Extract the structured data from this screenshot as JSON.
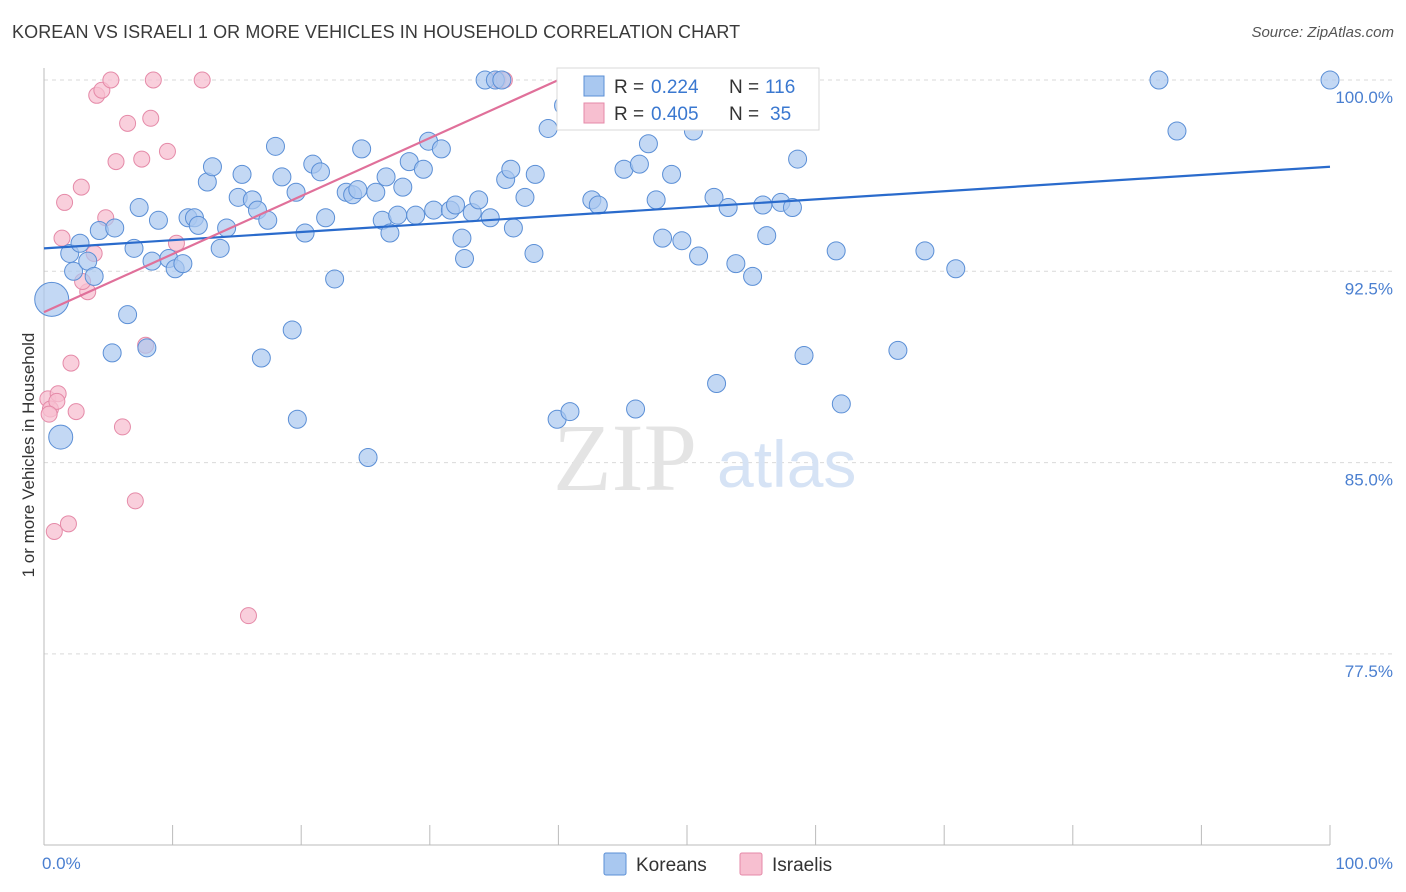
{
  "header": {
    "title": "KOREAN VS ISRAELI 1 OR MORE VEHICLES IN HOUSEHOLD CORRELATION CHART",
    "source": "Source: ZipAtlas.com"
  },
  "watermark": {
    "zip": "ZIP",
    "atlas": "atlas"
  },
  "colors": {
    "korean_fill": "#a9c8f0",
    "korean_stroke": "#5b8fd6",
    "korean_line": "#2a6bcc",
    "israeli_fill": "#f7bfd0",
    "israeli_stroke": "#e58aa8",
    "israeli_line": "#e0709a",
    "tick_text": "#4a7fd0",
    "grid": "#d9d9d9"
  },
  "chart_data": {
    "type": "scatter",
    "ylabel": "1 or more Vehicles in Household",
    "xlabel": "",
    "xlim": [
      0,
      100
    ],
    "ylim": [
      70,
      101
    ],
    "x_tick_labels": [
      "0.0%",
      "100.0%"
    ],
    "y_ticks": [
      {
        "value": 100.0,
        "label": "100.0%"
      },
      {
        "value": 92.5,
        "label": "92.5%"
      },
      {
        "value": 85.0,
        "label": "85.0%"
      },
      {
        "value": 77.5,
        "label": "77.5%"
      }
    ],
    "legend": {
      "placement": "top-center",
      "rows": [
        {
          "r_label": "R =",
          "r_value": "0.224",
          "n_label": "N =",
          "n_value": "116"
        },
        {
          "r_label": "R =",
          "r_value": "0.405",
          "n_label": "N =",
          "n_value": "35"
        }
      ]
    },
    "series": [
      {
        "name": "Koreans",
        "trend": {
          "x": [
            0,
            100
          ],
          "y": [
            93.4,
            96.6
          ]
        },
        "points": [
          [
            0.6,
            91.4
          ],
          [
            1.3,
            86.0
          ],
          [
            2.0,
            93.2
          ],
          [
            2.3,
            92.5
          ],
          [
            2.8,
            93.6
          ],
          [
            3.4,
            92.9
          ],
          [
            3.9,
            92.3
          ],
          [
            4.3,
            94.1
          ],
          [
            5.5,
            94.2
          ],
          [
            5.3,
            89.3
          ],
          [
            6.5,
            90.8
          ],
          [
            7.0,
            93.4
          ],
          [
            7.4,
            95.0
          ],
          [
            8.0,
            89.5
          ],
          [
            8.4,
            92.9
          ],
          [
            8.9,
            94.5
          ],
          [
            9.7,
            93.0
          ],
          [
            10.2,
            92.6
          ],
          [
            10.8,
            92.8
          ],
          [
            11.2,
            94.6
          ],
          [
            11.7,
            94.6
          ],
          [
            12.0,
            94.3
          ],
          [
            12.7,
            96.0
          ],
          [
            13.1,
            96.6
          ],
          [
            13.7,
            93.4
          ],
          [
            14.2,
            94.2
          ],
          [
            15.1,
            95.4
          ],
          [
            15.4,
            96.3
          ],
          [
            16.2,
            95.3
          ],
          [
            16.6,
            94.9
          ],
          [
            16.9,
            89.1
          ],
          [
            17.4,
            94.5
          ],
          [
            18.0,
            97.4
          ],
          [
            18.5,
            96.2
          ],
          [
            19.3,
            90.2
          ],
          [
            19.6,
            95.6
          ],
          [
            19.7,
            86.7
          ],
          [
            20.3,
            94.0
          ],
          [
            20.9,
            96.7
          ],
          [
            21.5,
            96.4
          ],
          [
            21.9,
            94.6
          ],
          [
            22.6,
            92.2
          ],
          [
            23.5,
            95.6
          ],
          [
            24.0,
            95.5
          ],
          [
            24.4,
            95.7
          ],
          [
            24.7,
            97.3
          ],
          [
            25.2,
            85.2
          ],
          [
            25.8,
            95.6
          ],
          [
            26.3,
            94.5
          ],
          [
            26.6,
            96.2
          ],
          [
            26.9,
            94.0
          ],
          [
            27.5,
            94.7
          ],
          [
            27.9,
            95.8
          ],
          [
            28.4,
            96.8
          ],
          [
            28.9,
            94.7
          ],
          [
            29.5,
            96.5
          ],
          [
            29.9,
            97.6
          ],
          [
            30.3,
            94.9
          ],
          [
            30.9,
            97.3
          ],
          [
            31.6,
            94.9
          ],
          [
            32.0,
            95.1
          ],
          [
            32.5,
            93.8
          ],
          [
            32.7,
            93.0
          ],
          [
            33.3,
            94.8
          ],
          [
            33.8,
            95.3
          ],
          [
            34.3,
            100.0
          ],
          [
            34.7,
            94.6
          ],
          [
            35.1,
            100.0
          ],
          [
            35.6,
            100.0
          ],
          [
            35.9,
            96.1
          ],
          [
            36.3,
            96.5
          ],
          [
            36.5,
            94.2
          ],
          [
            37.4,
            95.4
          ],
          [
            38.1,
            93.2
          ],
          [
            38.2,
            96.3
          ],
          [
            39.2,
            98.1
          ],
          [
            39.9,
            86.7
          ],
          [
            40.4,
            99.0
          ],
          [
            40.9,
            87.0
          ],
          [
            42.3,
            98.6
          ],
          [
            42.6,
            95.3
          ],
          [
            43.1,
            95.1
          ],
          [
            45.1,
            96.5
          ],
          [
            46.0,
            87.1
          ],
          [
            46.3,
            96.7
          ],
          [
            47.0,
            97.5
          ],
          [
            47.6,
            95.3
          ],
          [
            48.1,
            93.8
          ],
          [
            48.8,
            96.3
          ],
          [
            49.6,
            93.7
          ],
          [
            50.5,
            98.0
          ],
          [
            50.9,
            93.1
          ],
          [
            52.1,
            95.4
          ],
          [
            52.3,
            88.1
          ],
          [
            52.5,
            98.8
          ],
          [
            53.2,
            95.0
          ],
          [
            53.8,
            92.8
          ],
          [
            55.1,
            92.3
          ],
          [
            55.9,
            95.1
          ],
          [
            56.2,
            93.9
          ],
          [
            57.3,
            95.2
          ],
          [
            58.2,
            95.0
          ],
          [
            58.6,
            96.9
          ],
          [
            59.1,
            89.2
          ],
          [
            61.6,
            93.3
          ],
          [
            62.0,
            87.3
          ],
          [
            66.4,
            89.4
          ],
          [
            68.5,
            93.3
          ],
          [
            70.9,
            92.6
          ],
          [
            86.7,
            100.0
          ],
          [
            88.1,
            98.0
          ],
          [
            100.0,
            100.0
          ]
        ]
      },
      {
        "name": "Israelis",
        "trend": {
          "x": [
            0,
            40
          ],
          "y": [
            90.9,
            100.0
          ]
        },
        "points": [
          [
            0.3,
            87.5
          ],
          [
            0.5,
            87.1
          ],
          [
            0.8,
            82.3
          ],
          [
            1.1,
            87.7
          ],
          [
            1.4,
            93.8
          ],
          [
            1.6,
            95.2
          ],
          [
            1.9,
            82.6
          ],
          [
            2.1,
            88.9
          ],
          [
            2.5,
            87.0
          ],
          [
            2.9,
            95.8
          ],
          [
            3.4,
            91.7
          ],
          [
            3.9,
            93.2
          ],
          [
            4.1,
            99.4
          ],
          [
            4.5,
            99.6
          ],
          [
            4.8,
            94.6
          ],
          [
            5.2,
            100.0
          ],
          [
            5.6,
            96.8
          ],
          [
            6.1,
            86.4
          ],
          [
            6.5,
            98.3
          ],
          [
            7.1,
            83.5
          ],
          [
            7.6,
            96.9
          ],
          [
            7.9,
            89.6
          ],
          [
            8.3,
            98.5
          ],
          [
            8.5,
            100.0
          ],
          [
            9.6,
            97.2
          ],
          [
            10.3,
            93.6
          ],
          [
            12.3,
            100.0
          ],
          [
            15.9,
            79.0
          ],
          [
            35.3,
            100.0
          ],
          [
            35.8,
            100.0
          ],
          [
            41.2,
            98.8
          ],
          [
            45.0,
            100.0
          ],
          [
            1.0,
            87.4
          ],
          [
            3.0,
            92.1
          ],
          [
            0.4,
            86.9
          ]
        ]
      }
    ]
  },
  "bottom_legend": {
    "items": [
      {
        "label": "Koreans"
      },
      {
        "label": "Israelis"
      }
    ]
  }
}
